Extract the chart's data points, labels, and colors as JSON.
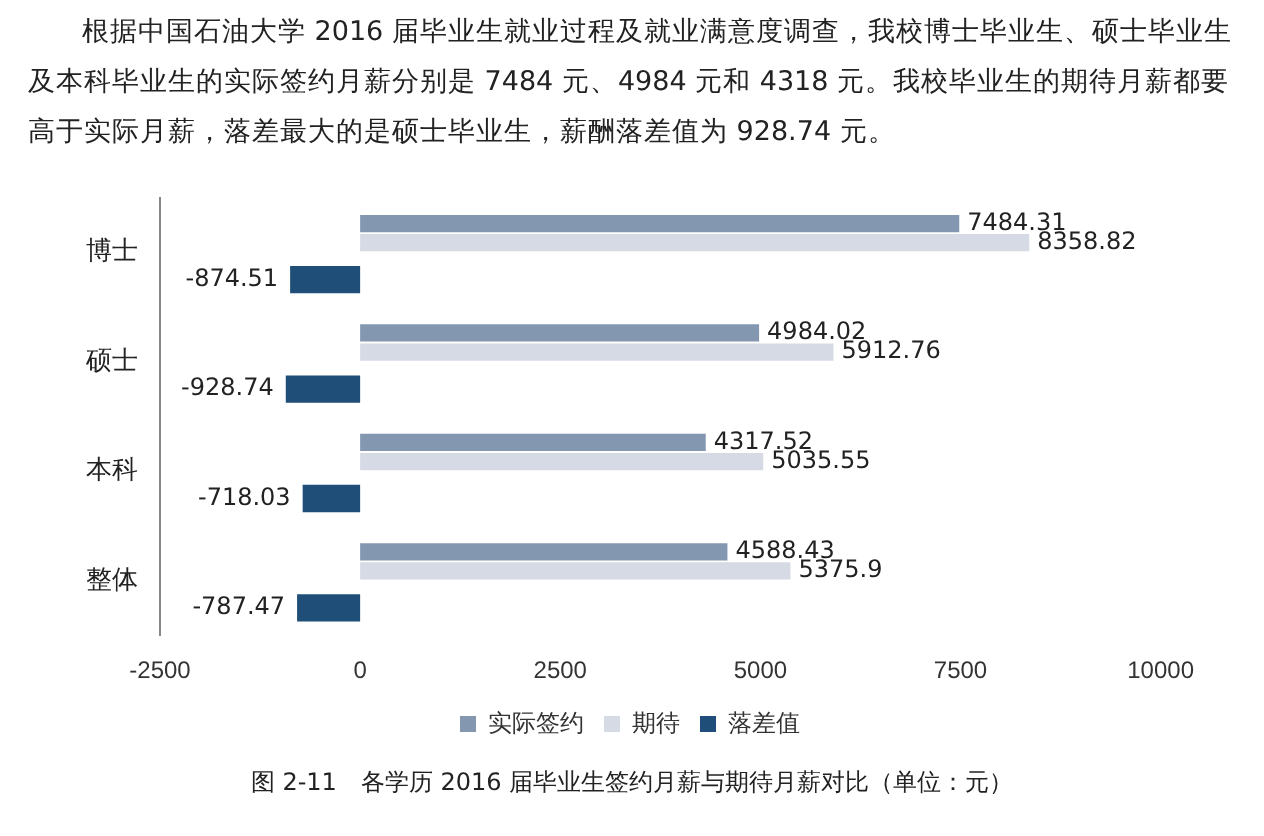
{
  "chart_data": {
    "type": "bar",
    "orientation": "horizontal",
    "title": "根据中国石油大学 2016 届毕业生就业过程及就业满意度调查，我校博士毕业生、硕士毕业生及本科毕业生的实际签约月薪分别是 7484 元、4984 元和 4318 元。我校毕业生的期待月薪都要高于实际月薪，落差最大的是硕士毕业生，薪酬落差值为 928.74 元。",
    "annotations": [
      "图 2-11　各学历 2016 届毕业生签约月薪与期待月薪对比（单位：元）"
    ],
    "categories": [
      "博士",
      "硕士",
      "本科",
      "整体"
    ],
    "series": [
      {
        "name": "实际签约",
        "color": "#8497b0",
        "values": [
          7484.31,
          4984.02,
          4317.52,
          4588.43
        ]
      },
      {
        "name": "期待",
        "color": "#d6dae4",
        "values": [
          8358.82,
          5912.76,
          5035.55,
          5375.9
        ]
      },
      {
        "name": "落差值",
        "color": "#1f4e79",
        "values": [
          -874.51,
          -928.74,
          -718.03,
          -787.47
        ]
      }
    ],
    "xlim": [
      -2500,
      10000
    ],
    "xticks": [
      -2500,
      0,
      2500,
      5000,
      7500,
      10000
    ],
    "legend": "bottom",
    "data_labels": true
  }
}
